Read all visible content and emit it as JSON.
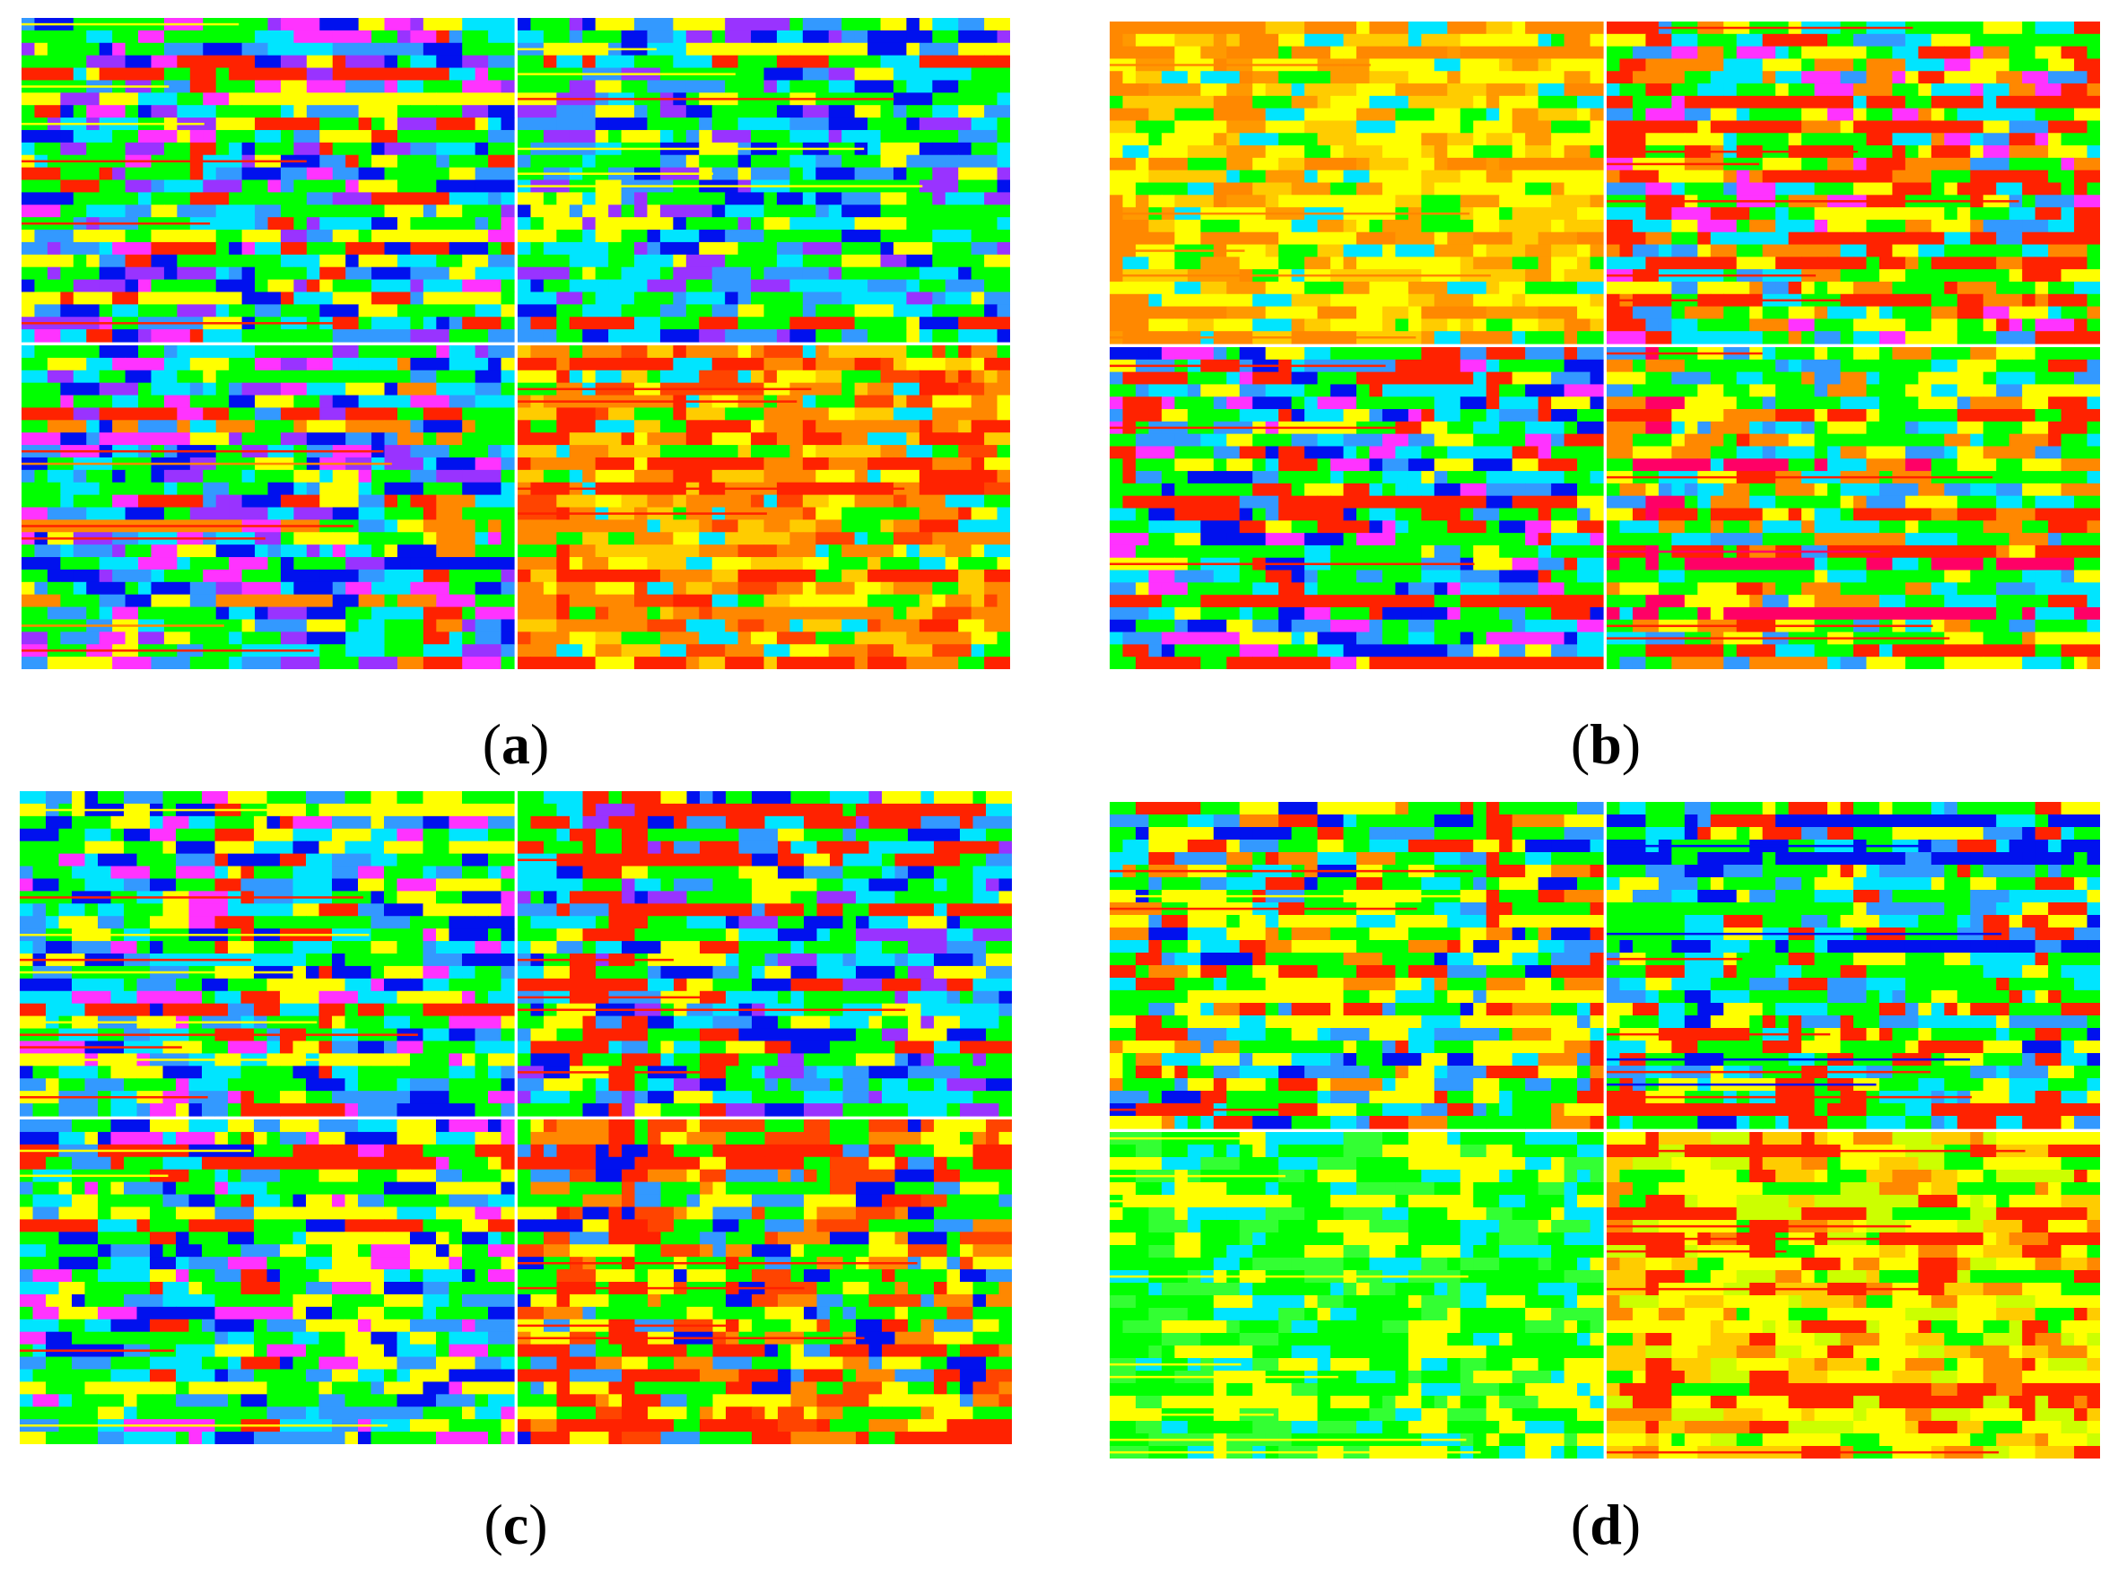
{
  "chart_data": [
    {
      "type": "heatmap",
      "label": "a",
      "quadrants": [
        {
          "position": "top-left",
          "dominant": [
            "#00ff00",
            "#00e5ff",
            "#3399ff",
            "#0011ee",
            "#ff33ff",
            "#ffff00",
            "#ff2200",
            "#9933ff"
          ],
          "row_lines": [
            "#ff2200",
            "#ffff00"
          ]
        },
        {
          "position": "top-right",
          "dominant": [
            "#00ff00",
            "#00e5ff",
            "#3399ff",
            "#0011ee",
            "#ffff00",
            "#9933ff"
          ],
          "row_lines": [
            "#ff2200",
            "#ffff00"
          ]
        },
        {
          "position": "bottom-left",
          "dominant": [
            "#00ff00",
            "#00e5ff",
            "#3399ff",
            "#0011ee",
            "#ff33ff",
            "#9933ff",
            "#ffff00"
          ],
          "row_lines": [
            "#ff2200",
            "#ff8800"
          ]
        },
        {
          "position": "bottom-right",
          "dominant": [
            "#ff8800",
            "#ffcc00",
            "#ffff00",
            "#00ff00",
            "#00e5ff",
            "#ff4400"
          ],
          "row_lines": [
            "#ff2200"
          ]
        }
      ]
    },
    {
      "type": "heatmap",
      "label": "b",
      "quadrants": [
        {
          "position": "top-left",
          "dominant": [
            "#ffff00",
            "#ffcc00",
            "#ff9900",
            "#00ff00",
            "#00e5ff"
          ],
          "row_lines": [
            "#ff8800"
          ]
        },
        {
          "position": "top-right",
          "dominant": [
            "#00ff00",
            "#ffff00",
            "#ff8800",
            "#00e5ff",
            "#ff2200",
            "#3399ff",
            "#ff33ff"
          ],
          "row_lines": [
            "#ff2200"
          ]
        },
        {
          "position": "bottom-left",
          "dominant": [
            "#00ff00",
            "#00e5ff",
            "#3399ff",
            "#0011ee",
            "#ff33ff",
            "#ff2200",
            "#ffff00"
          ],
          "row_lines": [
            "#ff2200"
          ]
        },
        {
          "position": "bottom-right",
          "dominant": [
            "#00ff00",
            "#ffff00",
            "#00e5ff",
            "#ff8800",
            "#3399ff"
          ],
          "row_lines": [
            "#ff2200",
            "#ff0066"
          ]
        }
      ]
    },
    {
      "type": "heatmap",
      "label": "c",
      "quadrants": [
        {
          "position": "top-left",
          "dominant": [
            "#00ff00",
            "#00e5ff",
            "#3399ff",
            "#0011ee",
            "#ffff00",
            "#ff33ff"
          ],
          "row_lines": [
            "#ff2200",
            "#ffff00"
          ]
        },
        {
          "position": "top-right",
          "dominant": [
            "#00ff00",
            "#00e5ff",
            "#3399ff",
            "#0011ee",
            "#ffff00",
            "#9933ff"
          ],
          "row_lines": [
            "#ff2200"
          ]
        },
        {
          "position": "bottom-left",
          "dominant": [
            "#00ff00",
            "#00e5ff",
            "#3399ff",
            "#ffff00",
            "#ff33ff",
            "#0011ee"
          ],
          "row_lines": [
            "#ff2200",
            "#ffff00"
          ]
        },
        {
          "position": "bottom-right",
          "dominant": [
            "#00ff00",
            "#ffff00",
            "#ff8800",
            "#ff4400",
            "#0011ee",
            "#3399ff"
          ],
          "row_lines": [
            "#ff2200"
          ]
        }
      ]
    },
    {
      "type": "heatmap",
      "label": "d",
      "quadrants": [
        {
          "position": "top-left",
          "dominant": [
            "#00ff00",
            "#ffff00",
            "#ff8800",
            "#00e5ff",
            "#3399ff",
            "#ff2200",
            "#0011ee"
          ],
          "row_lines": [
            "#ff2200",
            "#ffff00"
          ]
        },
        {
          "position": "top-right",
          "dominant": [
            "#00ff00",
            "#00e5ff",
            "#ffff00",
            "#3399ff",
            "#ff2200"
          ],
          "row_lines": [
            "#ff2200",
            "#0011ee"
          ]
        },
        {
          "position": "bottom-left",
          "dominant": [
            "#00ff00",
            "#33ff33",
            "#ffff00",
            "#00e5ff"
          ],
          "row_lines": [
            "#ffff00"
          ]
        },
        {
          "position": "bottom-right",
          "dominant": [
            "#ffff00",
            "#ccff00",
            "#ffcc00",
            "#00ff00",
            "#ff8800"
          ],
          "row_lines": [
            "#ff2200"
          ]
        }
      ]
    }
  ],
  "captions": {
    "a": {
      "open": "(",
      "letter": "a",
      "close": ")"
    },
    "b": {
      "open": "(",
      "letter": "b",
      "close": ")"
    },
    "c": {
      "open": "(",
      "letter": "c",
      "close": ")"
    },
    "d": {
      "open": "(",
      "letter": "d",
      "close": ")"
    }
  }
}
